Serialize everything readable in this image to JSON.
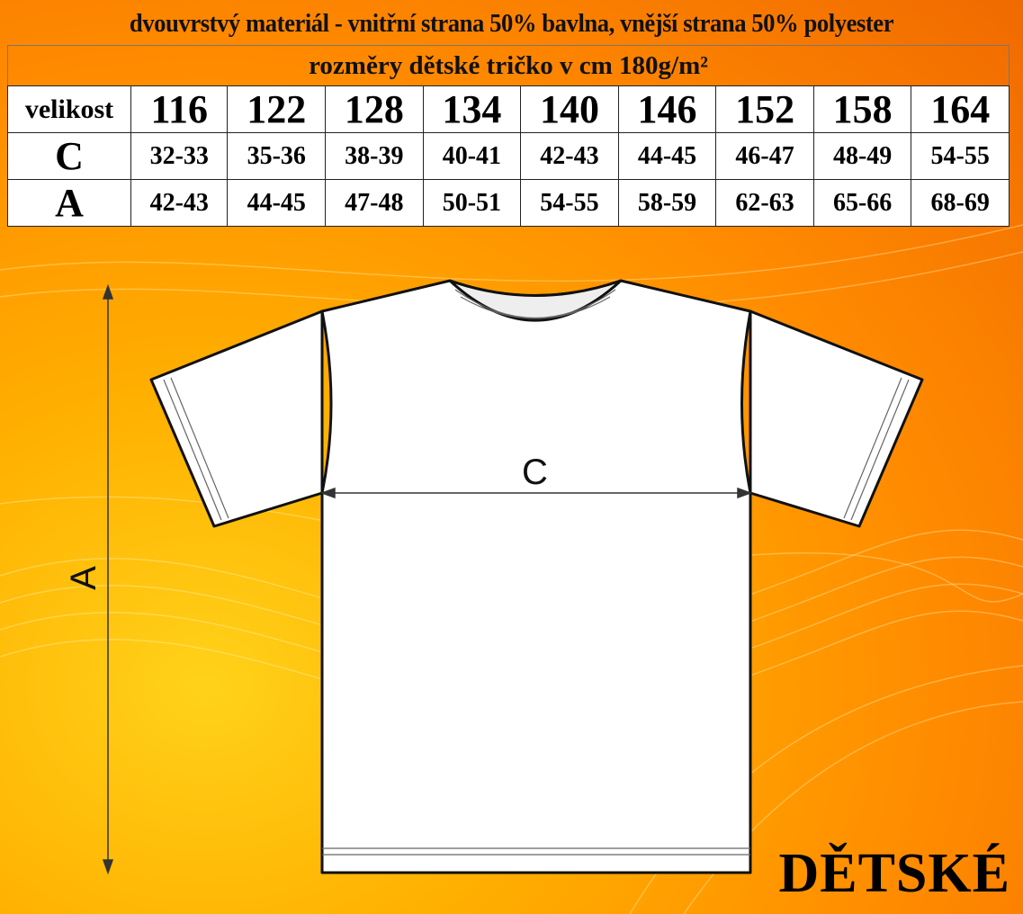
{
  "header": {
    "material": "dvouvrstvý materiál - vnitřní strana 50% bavlna, vnější strana 50% polyester",
    "subtitle": "rozměry dětské tričko v cm    180g/m²"
  },
  "size_table": {
    "row_label": "velikost",
    "sizes": [
      "116",
      "122",
      "128",
      "134",
      "140",
      "146",
      "152",
      "158",
      "164"
    ],
    "rows": [
      {
        "label": "C",
        "values": [
          "32-33",
          "35-36",
          "38-39",
          "40-41",
          "42-43",
          "44-45",
          "46-47",
          "48-49",
          "54-55"
        ]
      },
      {
        "label": "A",
        "values": [
          "42-43",
          "44-45",
          "47-48",
          "50-51",
          "54-55",
          "58-59",
          "62-63",
          "65-66",
          "68-69"
        ]
      }
    ]
  },
  "diagram": {
    "label_width": "C",
    "label_length": "A"
  },
  "brand_text": "DĚTSKÉ",
  "colors": {
    "background": "#ff9a00",
    "shirt": "#ffffff",
    "outline": "#111111"
  }
}
